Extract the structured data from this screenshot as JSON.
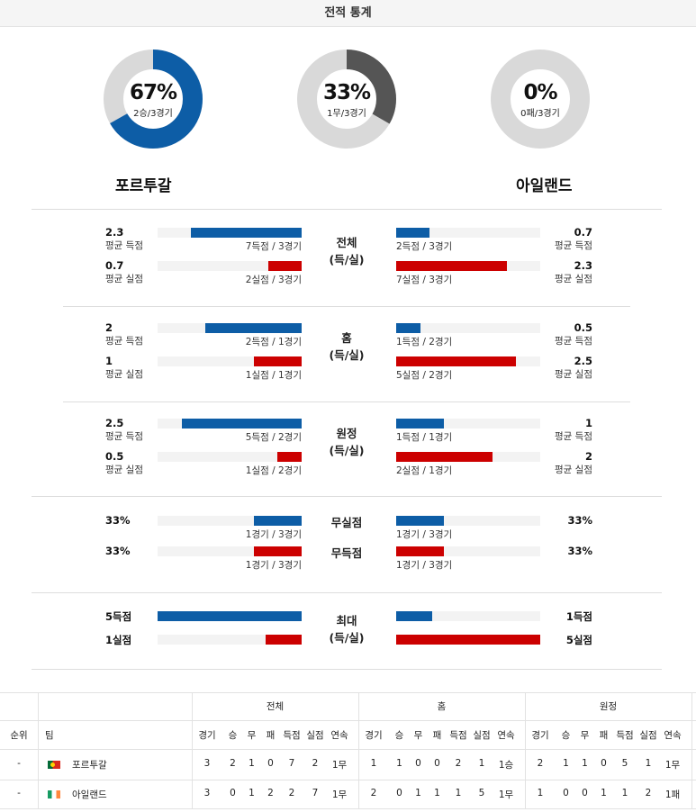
{
  "header": {
    "title": "전적 통계"
  },
  "donuts": [
    {
      "pct": "67%",
      "sub": "2승/3경기",
      "fraction": 0.667,
      "color": "#0d5da6"
    },
    {
      "pct": "33%",
      "sub": "1무/3경기",
      "fraction": 0.333,
      "color": "#555555"
    },
    {
      "pct": "0%",
      "sub": "0패/3경기",
      "fraction": 0.0,
      "color": "#cc0000"
    }
  ],
  "teams": {
    "home": "포르투갈",
    "away": "아일랜드"
  },
  "colors": {
    "blue": "#0d5da6",
    "red": "#cc0000",
    "gray": "#d9d9d9",
    "track": "#f3f3f3"
  },
  "sections": [
    {
      "title_line1": "전체",
      "title_line2": "(득/실)",
      "rows": [
        {
          "l_val": "2.3",
          "l_lab": "평균 득점",
          "l_bar": 0.77,
          "l_blab": "7득점 / 3경기",
          "color": "blue",
          "r_val": "0.7",
          "r_lab": "평균 득점",
          "r_bar": 0.23,
          "r_blab": "2득점 / 3경기"
        },
        {
          "l_val": "0.7",
          "l_lab": "평균 실점",
          "l_bar": 0.23,
          "l_blab": "2실점 / 3경기",
          "color": "red",
          "r_val": "2.3",
          "r_lab": "평균 실점",
          "r_bar": 0.77,
          "r_blab": "7실점 / 3경기"
        }
      ]
    },
    {
      "title_line1": "홈",
      "title_line2": "(득/실)",
      "rows": [
        {
          "l_val": "2",
          "l_lab": "평균 득점",
          "l_bar": 0.67,
          "l_blab": "2득점 / 1경기",
          "color": "blue",
          "r_val": "0.5",
          "r_lab": "평균 득점",
          "r_bar": 0.17,
          "r_blab": "1득점 / 2경기"
        },
        {
          "l_val": "1",
          "l_lab": "평균 실점",
          "l_bar": 0.33,
          "l_blab": "1실점 / 1경기",
          "color": "red",
          "r_val": "2.5",
          "r_lab": "평균 실점",
          "r_bar": 0.83,
          "r_blab": "5실점 / 2경기"
        }
      ]
    },
    {
      "title_line1": "원정",
      "title_line2": "(득/실)",
      "rows": [
        {
          "l_val": "2.5",
          "l_lab": "평균 득점",
          "l_bar": 0.83,
          "l_blab": "5득점 / 2경기",
          "color": "blue",
          "r_val": "1",
          "r_lab": "평균 득점",
          "r_bar": 0.33,
          "r_blab": "1득점 / 1경기"
        },
        {
          "l_val": "0.5",
          "l_lab": "평균 실점",
          "l_bar": 0.17,
          "l_blab": "1실점 / 2경기",
          "color": "red",
          "r_val": "2",
          "r_lab": "평균 실점",
          "r_bar": 0.67,
          "r_blab": "2실점 / 1경기"
        }
      ]
    },
    {
      "title_line1": "무실점",
      "title_line2": "",
      "rows": [
        {
          "l_val": "33%",
          "l_lab": "",
          "l_bar": 0.33,
          "l_blab": "1경기 / 3경기",
          "color": "blue",
          "r_val": "33%",
          "r_lab": "",
          "r_bar": 0.33,
          "r_blab": "1경기 / 3경기"
        }
      ]
    },
    {
      "title_line1": "무득점",
      "title_line2": "",
      "rows": [
        {
          "l_val": "33%",
          "l_lab": "",
          "l_bar": 0.33,
          "l_blab": "1경기 / 3경기",
          "color": "red",
          "r_val": "33%",
          "r_lab": "",
          "r_bar": 0.33,
          "r_blab": "1경기 / 3경기"
        }
      ]
    },
    {
      "title_line1": "최대",
      "title_line2": "(득/실)",
      "rows": [
        {
          "l_val": "5득점",
          "l_lab": "",
          "l_bar": 1.0,
          "l_blab": "",
          "color": "blue",
          "r_val": "1득점",
          "r_lab": "",
          "r_bar": 0.25,
          "r_blab": ""
        },
        {
          "l_val": "1실점",
          "l_lab": "",
          "l_bar": 0.25,
          "l_blab": "",
          "color": "red",
          "r_val": "5실점",
          "r_lab": "",
          "r_bar": 1.0,
          "r_blab": ""
        }
      ]
    }
  ],
  "table": {
    "group_headers": [
      "전체",
      "홈",
      "원정"
    ],
    "rank_header": "순위",
    "team_header": "팀",
    "col_headers": [
      "경기",
      "승",
      "무",
      "패",
      "득점",
      "실점",
      "연속"
    ],
    "rows": [
      {
        "rank": "-",
        "team": "포르투갈",
        "flag": "portugal",
        "total": [
          "3",
          "2",
          "1",
          "0",
          "7",
          "2",
          "1무"
        ],
        "home": [
          "1",
          "1",
          "0",
          "0",
          "2",
          "1",
          "1승"
        ],
        "away": [
          "2",
          "1",
          "1",
          "0",
          "5",
          "1",
          "1무"
        ]
      },
      {
        "rank": "-",
        "team": "아일랜드",
        "flag": "ireland",
        "total": [
          "3",
          "0",
          "1",
          "2",
          "2",
          "7",
          "1무"
        ],
        "home": [
          "2",
          "0",
          "1",
          "1",
          "1",
          "5",
          "1무"
        ],
        "away": [
          "1",
          "0",
          "0",
          "1",
          "1",
          "2",
          "1패"
        ]
      }
    ]
  }
}
